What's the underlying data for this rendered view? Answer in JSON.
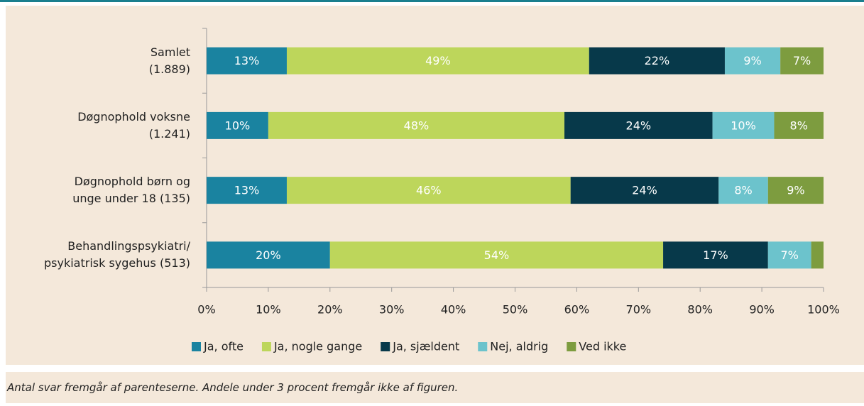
{
  "chart_data": {
    "type": "stacked_bar_horizontal",
    "categories": [
      "Samlet\n(1.889)",
      "Døgnophold voksne\n(1.241)",
      "Døgnophold børn og\nunge under 18 (135)",
      "Behandlingspsykiatri/\npsykiatrisk sygehus (513)"
    ],
    "series": [
      {
        "name": "Ja, ofte",
        "color": "#1a83a0",
        "values": [
          13,
          10,
          13,
          20
        ],
        "value_labels": [
          "13%",
          "10%",
          "13%",
          "20%"
        ]
      },
      {
        "name": "Ja, nogle gange",
        "color": "#bdd65b",
        "values": [
          49,
          48,
          46,
          54
        ],
        "value_labels": [
          "49%",
          "48%",
          "46%",
          "54%"
        ]
      },
      {
        "name": "Ja, sjældent",
        "color": "#07394a",
        "values": [
          22,
          24,
          24,
          17
        ],
        "value_labels": [
          "22%",
          "24%",
          "24%",
          "17%"
        ]
      },
      {
        "name": "Nej, aldrig",
        "color": "#6cc3cc",
        "values": [
          9,
          10,
          8,
          7
        ],
        "value_labels": [
          "9%",
          "10%",
          "8%",
          "7%"
        ]
      },
      {
        "name": "Ved ikke",
        "color": "#7d9c3f",
        "values": [
          7,
          8,
          9,
          2
        ],
        "value_labels": [
          "7%",
          "8%",
          "9%",
          null
        ]
      }
    ],
    "xlim": [
      0,
      100
    ],
    "xticks": [
      {
        "value": 0,
        "label": "0%"
      },
      {
        "value": 10,
        "label": "10%"
      },
      {
        "value": 20,
        "label": "20%"
      },
      {
        "value": 30,
        "label": "30%"
      },
      {
        "value": 40,
        "label": "40%"
      },
      {
        "value": 50,
        "label": "50%"
      },
      {
        "value": 60,
        "label": "60%"
      },
      {
        "value": 70,
        "label": "70%"
      },
      {
        "value": 80,
        "label": "80%"
      },
      {
        "value": 90,
        "label": "90%"
      },
      {
        "value": 100,
        "label": "100%"
      }
    ],
    "legend": "bottom",
    "footnote": "Antal svar fremgår af parenteserne. Andele under 3 procent fremgår ikke af figuren."
  }
}
